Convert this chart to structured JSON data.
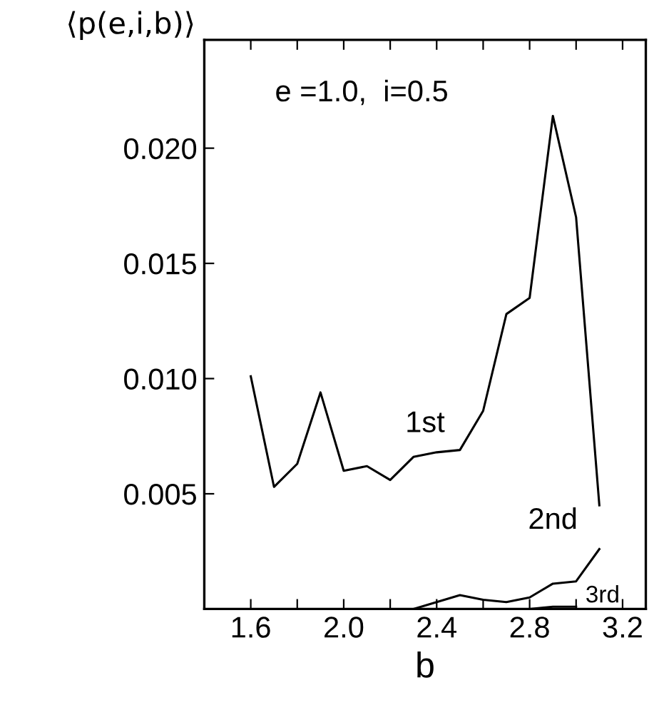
{
  "chart_data": {
    "type": "line",
    "xlabel": "b",
    "ylabel": "⟨p(e,i,b)⟩",
    "annotations": [
      "e =1.0,  i=0.5"
    ],
    "xlim": [
      1.4,
      3.3
    ],
    "xticks": [
      1.6,
      {
        "value": 1.8,
        "label": null
      },
      {
        "value": 2.0,
        "label": "2.0"
      },
      {
        "value": 2.2,
        "label": null
      },
      2.4,
      {
        "value": 2.6,
        "label": null
      },
      2.8,
      {
        "value": 3.0,
        "label": null
      },
      3.2
    ],
    "ylim": [
      0,
      0.0247
    ],
    "yticks": [
      {
        "value": 0.005,
        "label": "0.005"
      },
      {
        "value": 0.01,
        "label": "0.010"
      },
      {
        "value": 0.015,
        "label": "0.015"
      },
      {
        "value": 0.02,
        "label": "0.020"
      }
    ],
    "grid": false,
    "legend": false,
    "marker": "none",
    "line_style": "solid",
    "series": [
      {
        "name": "1st",
        "color": "#000000",
        "x": [
          1.6,
          1.7,
          1.8,
          1.9,
          2.0,
          2.1,
          2.2,
          2.3,
          2.4,
          2.5,
          2.6,
          2.7,
          2.8,
          2.9,
          3.0,
          3.1
        ],
        "values": [
          0.0101,
          0.0053,
          0.0063,
          0.0094,
          0.006,
          0.0062,
          0.0056,
          0.0066,
          0.0068,
          0.0069,
          0.0086,
          0.0128,
          0.0135,
          0.0214,
          0.017,
          0.0045
        ]
      },
      {
        "name": "2nd",
        "color": "#000000",
        "x": [
          2.3,
          2.4,
          2.5,
          2.6,
          2.7,
          2.8,
          2.9,
          3.0,
          3.1
        ],
        "values": [
          0.0,
          0.0003,
          0.0006,
          0.0004,
          0.0003,
          0.0005,
          0.0011,
          0.0012,
          0.0026
        ]
      },
      {
        "name": "3rd",
        "color": "#000000",
        "x": [
          2.7,
          2.8,
          2.9,
          3.0
        ],
        "values": [
          0.0,
          0.0,
          0.0001,
          0.0001
        ]
      }
    ]
  }
}
